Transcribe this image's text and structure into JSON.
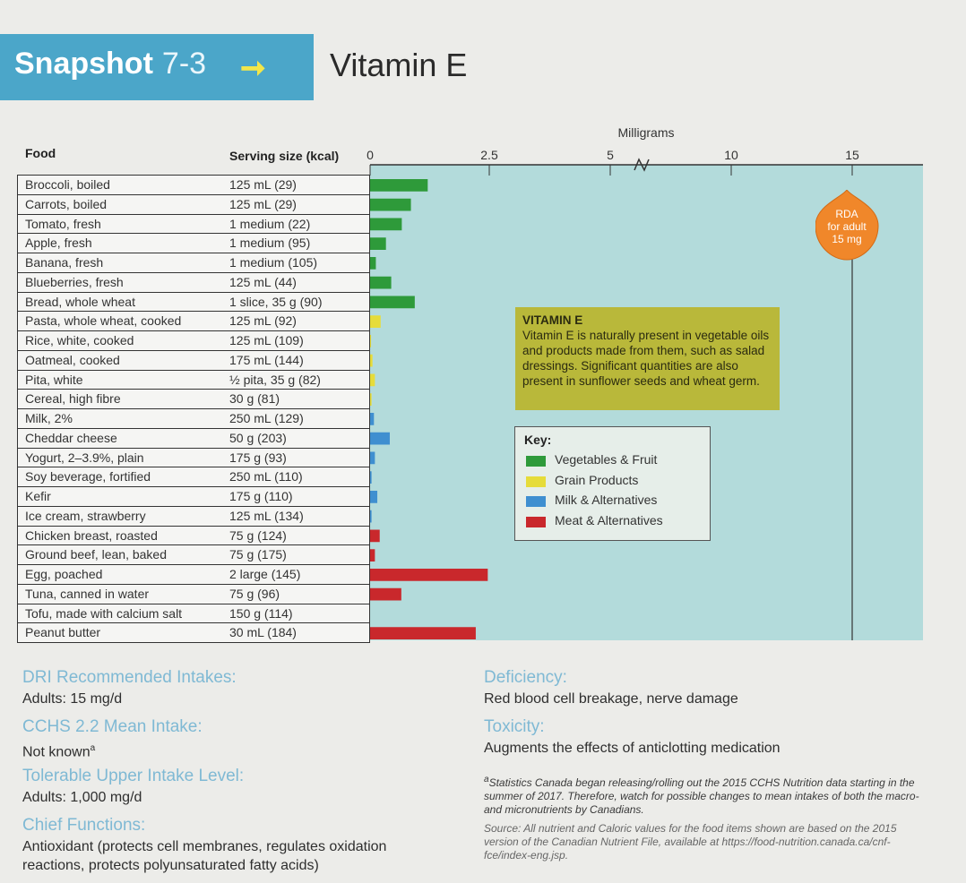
{
  "header": {
    "badge_word": "Snapshot",
    "badge_number": "7-3",
    "badge_arrow": "➞",
    "title": "Vitamin E"
  },
  "table": {
    "food_header": "Food",
    "serving_header": "Serving size (kcal)"
  },
  "chart_data": {
    "type": "bar",
    "orientation": "horizontal",
    "xlabel": "Milligrams",
    "xlim": [
      0,
      15
    ],
    "ticks": [
      "0",
      "2.5",
      "5",
      "10",
      "15"
    ],
    "axis_break_between": [
      "5",
      "10"
    ],
    "categories": [
      {
        "food": "Broccoli, boiled",
        "serving": "125 mL (29)",
        "value": 1.2,
        "group": "Vegetables & Fruit"
      },
      {
        "food": "Carrots, boiled",
        "serving": "125 mL (29)",
        "value": 0.85,
        "group": "Vegetables & Fruit"
      },
      {
        "food": "Tomato, fresh",
        "serving": "1 medium (22)",
        "value": 0.66,
        "group": "Vegetables & Fruit"
      },
      {
        "food": "Apple, fresh",
        "serving": "1 medium (95)",
        "value": 0.33,
        "group": "Vegetables & Fruit"
      },
      {
        "food": "Banana, fresh",
        "serving": "1 medium (105)",
        "value": 0.12,
        "group": "Vegetables & Fruit"
      },
      {
        "food": "Blueberries, fresh",
        "serving": "125 mL (44)",
        "value": 0.44,
        "group": "Vegetables & Fruit"
      },
      {
        "food": "Bread, whole wheat",
        "serving": "1 slice, 35 g (90)",
        "value": 0.93,
        "group": "Vegetables & Fruit"
      },
      {
        "food": "Pasta, whole wheat, cooked",
        "serving": "125 mL (92)",
        "value": 0.22,
        "group": "Grain Products"
      },
      {
        "food": "Rice, white, cooked",
        "serving": "125 mL (109)",
        "value": 0.02,
        "group": "Grain Products"
      },
      {
        "food": "Oatmeal, cooked",
        "serving": "175 mL (144)",
        "value": 0.05,
        "group": "Grain Products"
      },
      {
        "food": "Pita, white",
        "serving": "½ pita, 35 g (82)",
        "value": 0.1,
        "group": "Grain Products"
      },
      {
        "food": "Cereal, high fibre",
        "serving": "30 g (81)",
        "value": 0.03,
        "group": "Grain Products"
      },
      {
        "food": "Milk, 2%",
        "serving": "250 mL (129)",
        "value": 0.08,
        "group": "Milk & Alternatives"
      },
      {
        "food": "Cheddar cheese",
        "serving": "50 g (203)",
        "value": 0.41,
        "group": "Milk & Alternatives"
      },
      {
        "food": "Yogurt, 2–3.9%, plain",
        "serving": "175 g (93)",
        "value": 0.1,
        "group": "Milk & Alternatives"
      },
      {
        "food": "Soy beverage, fortified",
        "serving": "250 mL (110)",
        "value": 0.03,
        "group": "Milk & Alternatives"
      },
      {
        "food": "Kefir",
        "serving": "175 g (110)",
        "value": 0.15,
        "group": "Milk & Alternatives"
      },
      {
        "food": "Ice cream, strawberry",
        "serving": "125 mL (134)",
        "value": 0.03,
        "group": "Milk & Alternatives"
      },
      {
        "food": "Chicken breast, roasted",
        "serving": "75 g (124)",
        "value": 0.2,
        "group": "Meat & Alternatives"
      },
      {
        "food": "Ground beef, lean, baked",
        "serving": "75 g (175)",
        "value": 0.1,
        "group": "Meat & Alternatives"
      },
      {
        "food": "Egg, poached",
        "serving": "2 large (145)",
        "value": 2.45,
        "group": "Meat & Alternatives"
      },
      {
        "food": "Tuna, canned in water",
        "serving": "75 g (96)",
        "value": 0.65,
        "group": "Meat & Alternatives"
      },
      {
        "food": "Tofu, made with calcium salt",
        "serving": "150 g (114)",
        "value": 0.0,
        "group": "Meat & Alternatives"
      },
      {
        "food": "Peanut butter",
        "serving": "30 mL (184)",
        "value": 2.2,
        "group": "Meat & Alternatives"
      }
    ],
    "reference_line": {
      "value": 15,
      "label_lines": [
        "RDA",
        "for adult",
        "15 mg"
      ]
    },
    "legend": {
      "title": "Key:",
      "placement": "center",
      "entries": [
        {
          "label": "Vegetables & Fruit",
          "color": "#2e9a3a"
        },
        {
          "label": "Grain Products",
          "color": "#e6dc3a"
        },
        {
          "label": "Milk & Alternatives",
          "color": "#3f8fd0"
        },
        {
          "label": "Meat & Alternatives",
          "color": "#c9282c"
        }
      ]
    }
  },
  "info_box": {
    "title": "VITAMIN E",
    "body": "Vitamin E is naturally present in vegetable oils and products made from them, such as salad dressings. Significant quantities are also present in sunflower seeds and wheat germ."
  },
  "colors": {
    "plot_bg": "#b3dbdb",
    "badge_bg": "#4ba6c9",
    "info_bg": "#b9b83a",
    "rda_fill": "#f0872a",
    "section_head": "#7fb9d4"
  },
  "sections": {
    "dri_head": "DRI Recommended Intakes:",
    "dri_body": "Adults:   15 mg/d",
    "ccrs_head": "CCHS 2.2 Mean Intake:",
    "ccrs_body": "Not known",
    "ccrs_sup": "a",
    "ul_head": "Tolerable Upper Intake Level:",
    "ul_body": "Adults: 1,000 mg/d",
    "func_head": "Chief Functions:",
    "func_body": "Antioxidant (protects cell membranes, regulates oxidation reactions, protects polyunsaturated fatty acids)",
    "def_head": "Deficiency:",
    "def_body": "Red blood cell breakage, nerve damage",
    "tox_head": "Toxicity:",
    "tox_body": "Augments the effects of anticlotting medication"
  },
  "footnotes": {
    "a_sup": "a",
    "a_text": "Statistics Canada began releasing/rolling out the 2015 CCHS Nutrition data starting in the summer of 2017. Therefore, watch for possible changes to mean intakes of both the macro- and micronutrients by Canadians.",
    "source": "Source: All nutrient and Caloric values for the food items shown are based on the 2015 version of the Canadian Nutrient File, available at https://food-nutrition.canada.ca/cnf-fce/index-eng.jsp."
  }
}
